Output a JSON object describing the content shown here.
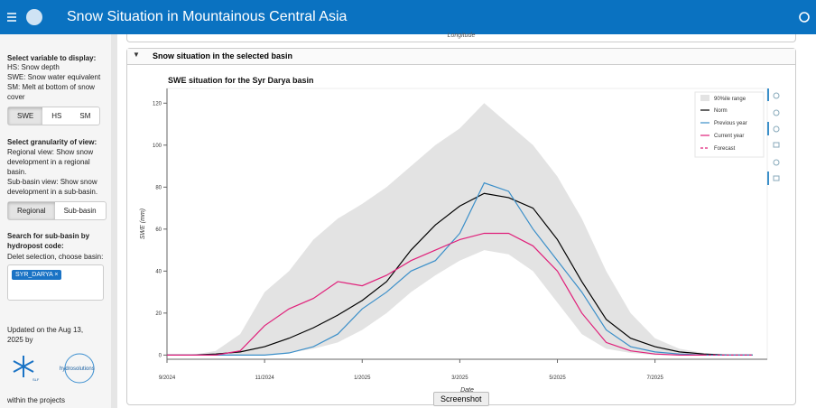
{
  "header": {
    "title": "Snow Situation in Mountainous Central Asia"
  },
  "sidebar": {
    "variable": {
      "label": "Select variable to display:",
      "help": [
        "HS: Snow depth",
        "SWE: Snow water equivalent",
        "SM: Melt at bottom of snow cover"
      ],
      "options": [
        "SWE",
        "HS",
        "SM"
      ]
    },
    "granularity": {
      "label": "Select granularity of view:",
      "help": [
        "Regional view: Show snow development in a regional basin.",
        "Sub-basin view: Show snow development in a sub-basin."
      ],
      "options": [
        "Regional",
        "Sub-basin"
      ]
    },
    "search": {
      "label": "Search for sub-basin by hydropost code:",
      "help": "Delet selection, choose basin:",
      "tag": "SYR_DARYA",
      "remove": "×"
    },
    "updated": "Updated on the Aug 13, 2025 by",
    "partner": "hydrosolutions",
    "slf": "SLF",
    "footer": "within the projects"
  },
  "panel": {
    "above_label": "Longitude",
    "title": "Snow situation in the selected basin",
    "screenshot": "Screenshot"
  },
  "chart_data": {
    "type": "line",
    "title": "SWE situation for the Syr Darya basin",
    "x_label": "Date",
    "y_label": "SWE (mm)",
    "x": [
      0,
      0.5,
      1,
      1.5,
      2,
      2.5,
      3,
      3.5,
      4,
      4.5,
      5,
      5.5,
      6,
      6.5,
      7,
      7.5,
      8,
      8.5,
      9,
      9.5,
      10,
      10.5,
      11,
      11.5,
      12
    ],
    "xlim": [
      0,
      12.3
    ],
    "xticks": [
      {
        "value": 0,
        "label": "9/2024"
      },
      {
        "value": 2,
        "label": "11/2024"
      },
      {
        "value": 4,
        "label": "1/2025"
      },
      {
        "value": 6,
        "label": "3/2025"
      },
      {
        "value": 8,
        "label": "5/2025"
      },
      {
        "value": 10,
        "label": "7/2025"
      }
    ],
    "ylim": [
      -2,
      127
    ],
    "yticks": [
      0,
      20,
      40,
      60,
      80,
      100,
      120
    ],
    "band": {
      "name": "90%ile range",
      "color": "#e3e3e3",
      "lower": [
        0,
        0,
        0,
        0,
        0,
        1,
        3,
        6,
        12,
        20,
        30,
        38,
        45,
        50,
        48,
        40,
        25,
        10,
        3,
        1,
        0,
        0,
        0,
        0,
        0
      ],
      "upper": [
        0,
        0,
        2,
        10,
        30,
        40,
        55,
        65,
        72,
        80,
        90,
        100,
        108,
        120,
        110,
        100,
        85,
        65,
        40,
        20,
        8,
        3,
        1,
        0,
        0
      ]
    },
    "series": [
      {
        "name": "Norm",
        "color": "#000000",
        "values": [
          0,
          0,
          0.5,
          1.5,
          4,
          8,
          13,
          19,
          26,
          35,
          50,
          62,
          71,
          77,
          75,
          70,
          55,
          35,
          17,
          8,
          4,
          1.5,
          0.5,
          0,
          0
        ]
      },
      {
        "name": "Previous year",
        "color": "#3b8fc9",
        "values": [
          0,
          0,
          0,
          0,
          0,
          1,
          4,
          10,
          22,
          30,
          40,
          45,
          58,
          82,
          78,
          60,
          45,
          30,
          12,
          4,
          1.5,
          0.5,
          0,
          0,
          0
        ]
      },
      {
        "name": "Current year",
        "color": "#e0207a",
        "values": [
          0,
          0,
          0,
          2,
          14,
          22,
          27,
          35,
          33,
          38,
          45,
          50,
          55,
          58,
          58,
          52,
          40,
          20,
          6,
          2,
          0.5,
          0,
          0,
          null,
          null
        ]
      },
      {
        "name": "Forecast",
        "color": "#e0207a",
        "dash": true,
        "values": [
          null,
          null,
          null,
          null,
          null,
          null,
          null,
          null,
          null,
          null,
          null,
          null,
          null,
          null,
          null,
          null,
          null,
          null,
          null,
          null,
          null,
          null,
          0,
          0,
          0
        ]
      }
    ],
    "legend": "top-right"
  }
}
